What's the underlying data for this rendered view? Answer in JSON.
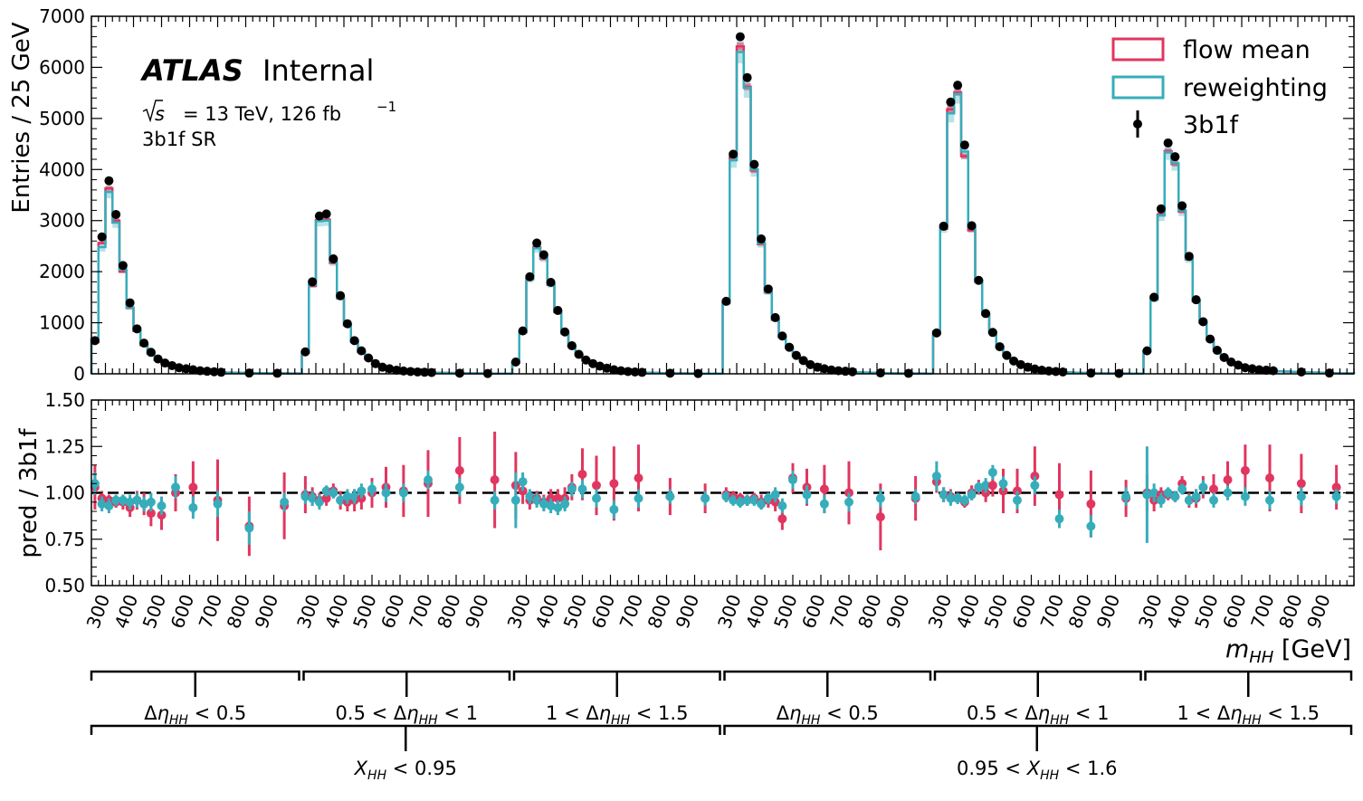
{
  "colors": {
    "flow": "#e0365f",
    "rew": "#36adbb",
    "data": "#000000",
    "ref_line": "#000000"
  },
  "chart_data": {
    "type": "histogram",
    "label": {
      "experiment": "ATLAS",
      "status": "Internal",
      "energy": "√s = 13 TeV, 126 fb⁻¹",
      "region": "3b1f SR"
    },
    "legend": {
      "placement": "top-right",
      "entries": [
        "flow mean",
        "reweighting",
        "3b1f"
      ]
    },
    "main_panel": {
      "ylabel": "Entries / 25 GeV",
      "ylim": [
        0,
        7000
      ],
      "yticks": [
        0,
        1000,
        2000,
        3000,
        4000,
        5000,
        6000,
        7000
      ]
    },
    "ratio_panel": {
      "ylabel": "pred / 3b1f",
      "ylim": [
        0.5,
        1.5
      ],
      "yticks": [
        "0.50",
        "0.75",
        "1.00",
        "1.25",
        "1.50"
      ],
      "reference": 1.0
    },
    "xlabel": "m_HH [GeV]",
    "xtick_labels": [
      "300",
      "400",
      "500",
      "600",
      "700",
      "800",
      "900"
    ],
    "xtick_values": [
      300,
      400,
      500,
      600,
      700,
      800,
      900
    ],
    "segment_mass_range": [
      250,
      1000
    ],
    "bin_width_gev": 25,
    "bins_per_segment": 30,
    "eta_groups": [
      "Δη_HH < 0.5",
      "0.5 < Δη_HH < 1",
      "1 < Δη_HH < 1.5",
      "Δη_HH < 0.5",
      "0.5 < Δη_HH < 1",
      "1 < Δη_HH < 1.5"
    ],
    "xhh_groups": [
      "X_HH < 0.95",
      "0.95 < X_HH < 1.6"
    ],
    "segments": [
      {
        "data": [
          650,
          2680,
          3780,
          3120,
          2120,
          1390,
          880,
          600,
          420,
          290,
          210,
          160,
          120,
          100,
          80,
          60,
          50,
          40,
          30,
          25,
          20,
          20,
          15,
          15,
          12,
          10,
          10,
          8,
          8,
          6
        ],
        "flow": [
          620,
          2560,
          3630,
          3000,
          2000,
          1290,
          840,
          560,
          400,
          270,
          190,
          150,
          110,
          95,
          75,
          60,
          50,
          40,
          30,
          25,
          20,
          18,
          15,
          13,
          12,
          10,
          9,
          8,
          7,
          6
        ],
        "rew": [
          680,
          2480,
          3560,
          2960,
          2040,
          1300,
          850,
          570,
          395,
          275,
          195,
          155,
          115,
          95,
          78,
          60,
          50,
          40,
          30,
          25,
          20,
          19,
          15,
          14,
          12,
          10,
          9,
          8,
          7,
          6
        ],
        "ratio_flow": [
          1.03,
          0.97,
          0.96,
          0.95,
          0.95,
          0.92,
          0.96,
          0.94,
          0.89,
          0.88,
          1.0,
          1.03,
          0.96,
          0.82,
          0.93
        ],
        "ratio_flow_err": [
          0.12,
          0.04,
          0.03,
          0.03,
          0.04,
          0.05,
          0.05,
          0.06,
          0.07,
          0.08,
          0.1,
          0.14,
          0.22,
          0.16,
          0.18
        ],
        "ratio_rew": [
          1.05,
          0.94,
          0.93,
          0.96,
          0.96,
          0.95,
          0.96,
          0.94,
          0.95,
          0.93,
          1.03,
          0.92,
          0.94,
          0.81,
          0.95
        ],
        "ratio_rew_err": [
          0.06,
          0.04,
          0.04,
          0.03,
          0.03,
          0.04,
          0.04,
          0.04,
          0.05,
          0.05,
          0.06,
          0.06,
          0.07,
          0.09,
          0.05
        ]
      },
      {
        "data": [
          430,
          1800,
          3090,
          3130,
          2250,
          1530,
          980,
          650,
          450,
          310,
          200,
          130,
          100,
          70,
          55,
          45,
          35,
          30,
          25,
          20,
          18,
          15,
          12,
          10,
          8,
          8,
          6,
          5,
          5,
          4
        ],
        "flow": [
          410,
          1720,
          3010,
          3020,
          2170,
          1480,
          950,
          640,
          430,
          300,
          195,
          125,
          95,
          68,
          55,
          45,
          35,
          30,
          25,
          20,
          18,
          15,
          12,
          10,
          8,
          8,
          6,
          5,
          5,
          4
        ],
        "rew": [
          415,
          1740,
          2990,
          3000,
          2190,
          1490,
          955,
          630,
          435,
          305,
          198,
          127,
          96,
          69,
          55,
          45,
          35,
          30,
          25,
          20,
          18,
          15,
          12,
          10,
          8,
          8,
          6,
          5,
          5,
          4
        ],
        "ratio_flow": [
          0.99,
          0.98,
          0.96,
          0.97,
          1.01,
          0.96,
          0.95,
          0.96,
          0.97,
          1.0,
          1.03,
          1.01,
          1.05,
          1.12,
          1.07
        ],
        "ratio_flow_err": [
          0.1,
          0.05,
          0.04,
          0.04,
          0.04,
          0.05,
          0.05,
          0.06,
          0.06,
          0.08,
          0.11,
          0.14,
          0.18,
          0.18,
          0.26
        ],
        "ratio_rew": [
          0.98,
          0.97,
          0.95,
          1.01,
          1.0,
          0.96,
          0.98,
          0.98,
          1.01,
          1.02,
          1.0,
          1.0,
          1.07,
          1.03,
          0.96
        ],
        "ratio_rew_err": [
          0.04,
          0.04,
          0.04,
          0.03,
          0.03,
          0.03,
          0.04,
          0.04,
          0.04,
          0.04,
          0.05,
          0.05,
          0.05,
          0.05,
          0.05
        ]
      },
      {
        "data": [
          230,
          840,
          1900,
          2560,
          2330,
          1790,
          1240,
          820,
          550,
          380,
          270,
          200,
          150,
          110,
          80,
          60,
          45,
          35,
          28,
          22,
          18,
          14,
          12,
          10,
          8,
          7,
          6,
          5,
          4,
          4
        ],
        "flow": [
          220,
          810,
          1860,
          2480,
          2250,
          1740,
          1210,
          800,
          540,
          370,
          265,
          195,
          148,
          108,
          80,
          60,
          45,
          35,
          28,
          22,
          18,
          14,
          12,
          10,
          8,
          7,
          6,
          5,
          4,
          4
        ],
        "rew": [
          225,
          820,
          1850,
          2460,
          2270,
          1750,
          1215,
          790,
          535,
          372,
          266,
          196,
          147,
          108,
          80,
          60,
          45,
          35,
          28,
          22,
          18,
          14,
          12,
          10,
          8,
          7,
          6,
          5,
          4,
          4
        ],
        "ratio_flow": [
          1.04,
          1.01,
          0.96,
          0.97,
          0.95,
          0.97,
          0.97,
          0.97,
          1.03,
          1.1,
          1.04,
          1.05,
          1.08,
          0.98,
          0.97
        ],
        "ratio_flow_err": [
          0.18,
          0.07,
          0.05,
          0.04,
          0.04,
          0.05,
          0.05,
          0.06,
          0.07,
          0.14,
          0.16,
          0.2,
          0.18,
          0.1,
          0.08
        ],
        "ratio_rew": [
          0.96,
          1.06,
          0.98,
          0.96,
          0.94,
          0.93,
          0.92,
          0.94,
          1.02,
          1.02,
          0.97,
          0.91,
          0.97,
          0.98,
          0.97
        ],
        "ratio_rew_err": [
          0.15,
          0.05,
          0.04,
          0.04,
          0.04,
          0.04,
          0.04,
          0.04,
          0.04,
          0.05,
          0.05,
          0.05,
          0.05,
          0.04,
          0.04
        ]
      },
      {
        "data": [
          1420,
          4300,
          6600,
          5800,
          4100,
          2640,
          1660,
          1100,
          740,
          520,
          360,
          260,
          180,
          130,
          100,
          75,
          60,
          50,
          40,
          32,
          25,
          20,
          17,
          14,
          12,
          10,
          8,
          7,
          6,
          5
        ],
        "flow": [
          1390,
          4240,
          6410,
          5620,
          3980,
          2540,
          1590,
          1060,
          720,
          505,
          350,
          255,
          178,
          128,
          98,
          74,
          59,
          49,
          39,
          31,
          25,
          20,
          17,
          14,
          12,
          10,
          8,
          7,
          6,
          5
        ],
        "rew": [
          1380,
          4180,
          6300,
          5600,
          4000,
          2560,
          1600,
          1070,
          725,
          508,
          352,
          256,
          177,
          128,
          98,
          74,
          59,
          49,
          39,
          31,
          25,
          20,
          17,
          14,
          12,
          10,
          8,
          7,
          6,
          5
        ],
        "ratio_flow": [
          0.99,
          0.98,
          0.97,
          0.96,
          0.97,
          0.95,
          0.96,
          0.95,
          0.86,
          1.08,
          1.03,
          1.02,
          1.0,
          0.87,
          0.97
        ],
        "ratio_flow_err": [
          0.04,
          0.03,
          0.03,
          0.03,
          0.03,
          0.04,
          0.04,
          0.05,
          0.06,
          0.08,
          0.1,
          0.13,
          0.17,
          0.18,
          0.12
        ],
        "ratio_rew": [
          0.98,
          0.96,
          0.95,
          0.96,
          0.96,
          0.94,
          0.97,
          0.99,
          0.93,
          1.07,
          0.99,
          0.94,
          0.95,
          0.97,
          0.98
        ],
        "ratio_rew_err": [
          0.03,
          0.03,
          0.03,
          0.03,
          0.03,
          0.03,
          0.03,
          0.04,
          0.04,
          0.05,
          0.05,
          0.05,
          0.05,
          0.05,
          0.04
        ]
      },
      {
        "data": [
          800,
          2890,
          5320,
          5650,
          4480,
          2900,
          1830,
          1180,
          810,
          530,
          360,
          250,
          180,
          130,
          95,
          70,
          55,
          45,
          35,
          28,
          22,
          18,
          15,
          12,
          10,
          8,
          7,
          6,
          5,
          4
        ],
        "flow": [
          790,
          2840,
          5180,
          5510,
          4260,
          2810,
          1800,
          1160,
          800,
          520,
          355,
          248,
          178,
          128,
          94,
          70,
          55,
          45,
          35,
          28,
          22,
          18,
          15,
          12,
          10,
          8,
          7,
          6,
          5,
          4
        ],
        "rew": [
          830,
          2860,
          5100,
          5480,
          4350,
          2860,
          1810,
          1170,
          805,
          525,
          357,
          249,
          179,
          129,
          94,
          70,
          55,
          45,
          35,
          28,
          22,
          18,
          15,
          12,
          10,
          8,
          7,
          6,
          5,
          4
        ],
        "ratio_flow": [
          1.06,
          0.99,
          0.98,
          0.97,
          0.95,
          1.0,
          1.03,
          1.0,
          1.04,
          1.01,
          1.01,
          1.09,
          0.99,
          0.94,
          0.97
        ],
        "ratio_flow_err": [
          0.06,
          0.04,
          0.04,
          0.03,
          0.03,
          0.04,
          0.04,
          0.05,
          0.06,
          0.12,
          0.12,
          0.16,
          0.17,
          0.18,
          0.1
        ],
        "ratio_rew": [
          1.09,
          0.99,
          0.97,
          0.97,
          0.96,
          0.99,
          1.03,
          1.04,
          1.11,
          1.05,
          0.96,
          1.04,
          0.86,
          0.82,
          0.98
        ],
        "ratio_rew_err": [
          0.08,
          0.04,
          0.04,
          0.03,
          0.03,
          0.03,
          0.03,
          0.04,
          0.04,
          0.04,
          0.05,
          0.05,
          0.05,
          0.06,
          0.05
        ]
      },
      {
        "data": [
          450,
          1500,
          3230,
          4520,
          4250,
          3290,
          2300,
          1450,
          1020,
          680,
          460,
          320,
          230,
          170,
          120,
          100,
          80,
          70,
          60,
          50,
          45,
          40,
          35,
          30,
          25,
          20,
          15,
          12,
          10,
          8
        ],
        "flow": [
          440,
          1460,
          3120,
          4360,
          4110,
          3180,
          2240,
          1420,
          1000,
          670,
          455,
          318,
          228,
          168,
          118,
          98,
          78,
          68,
          58,
          48,
          44,
          39,
          34,
          29,
          24,
          19,
          14,
          12,
          10,
          8
        ],
        "rew": [
          445,
          1450,
          3100,
          4340,
          4120,
          3200,
          2250,
          1425,
          1005,
          672,
          456,
          319,
          229,
          169,
          119,
          99,
          79,
          69,
          59,
          49,
          44,
          39,
          34,
          29,
          24,
          19,
          14,
          12,
          10,
          8
        ],
        "ratio_flow": [
          1.0,
          0.96,
          0.99,
          0.99,
          0.98,
          1.05,
          0.96,
          0.97,
          1.03,
          1.02,
          1.07,
          1.12,
          1.08,
          1.05,
          1.03
        ],
        "ratio_flow_err": [
          0.1,
          0.06,
          0.04,
          0.03,
          0.03,
          0.04,
          0.04,
          0.05,
          0.06,
          0.08,
          0.1,
          0.14,
          0.18,
          0.16,
          0.12
        ],
        "ratio_rew": [
          0.99,
          1.0,
          0.96,
          1.0,
          0.98,
          1.02,
          0.96,
          0.98,
          1.03,
          0.96,
          1.0,
          0.98,
          0.96,
          0.98,
          0.98
        ],
        "ratio_rew_err": [
          0.26,
          0.05,
          0.04,
          0.03,
          0.03,
          0.03,
          0.03,
          0.04,
          0.04,
          0.04,
          0.04,
          0.05,
          0.05,
          0.05,
          0.04
        ]
      }
    ]
  },
  "text": {
    "atlas": "ATLAS",
    "internal": "Internal",
    "lumi_prefix": "= 13 TeV, 126 fb",
    "lumi_exp": "−1",
    "region": "3b1f SR",
    "ylabel_main": "Entries / 25 GeV",
    "ylabel_ratio": "pred / 3b1f",
    "legend_flow": "flow mean",
    "legend_rew": "reweighting",
    "legend_data": "3b1f",
    "xlabel_var": "m",
    "xlabel_sub": "HH",
    "xlabel_unit": " [GeV]",
    "eta": [
      {
        "pre": "",
        "sub": "HH",
        "post": " < 0.5"
      },
      {
        "pre": "0.5 < ",
        "sub": "HH",
        "post": " < 1"
      },
      {
        "pre": "1 < ",
        "sub": "HH",
        "post": " < 1.5"
      },
      {
        "pre": "",
        "sub": "HH",
        "post": " < 0.5"
      },
      {
        "pre": "0.5 < ",
        "sub": "HH",
        "post": " < 1"
      },
      {
        "pre": "1 < ",
        "sub": "HH",
        "post": " < 1.5"
      }
    ],
    "xhh": [
      {
        "pre": "",
        "sub": "HH",
        "post": " < 0.95"
      },
      {
        "pre": "0.95 < ",
        "sub": "HH",
        "post": " < 1.6"
      }
    ]
  }
}
